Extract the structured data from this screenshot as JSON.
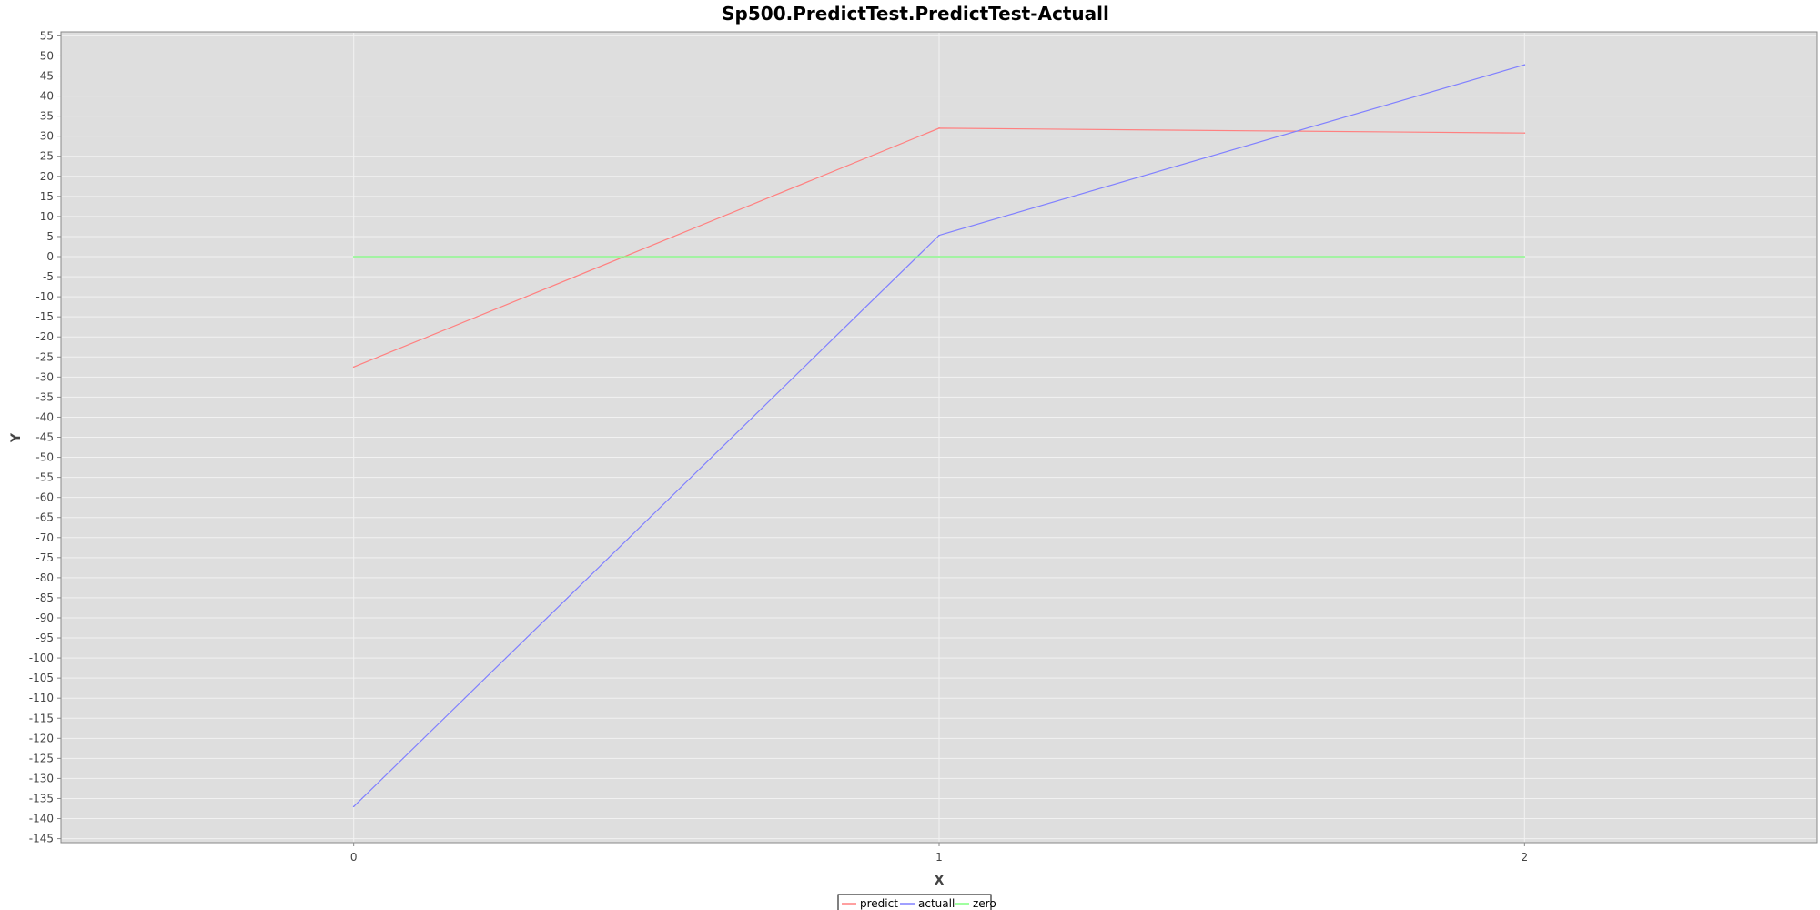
{
  "chart_data": {
    "type": "line",
    "title": "Sp500.PredictTest.PredictTest-Actuall",
    "xlabel": "X",
    "ylabel": "Y",
    "x": [
      0,
      1,
      2
    ],
    "x_ticks": [
      "0",
      "1",
      "2"
    ],
    "xlim": [
      -0.5,
      2.5
    ],
    "ylim": [
      -146,
      56
    ],
    "y_tick_step": 5,
    "y_tick_min": -145,
    "y_tick_max": 55,
    "grid": true,
    "legend_position": "bottom-center",
    "series": [
      {
        "name": "predict",
        "color": "#ff8080",
        "values": [
          -27.5,
          32.0,
          30.8
        ]
      },
      {
        "name": "actuall",
        "color": "#8080ff",
        "values": [
          -137.0,
          5.3,
          47.8
        ]
      },
      {
        "name": "zero",
        "color": "#80ff80",
        "values": [
          0,
          0,
          0
        ]
      }
    ],
    "colors": {
      "plot_background": "#dedede",
      "gridline": "#f2f2f2",
      "axis": "#888888"
    }
  }
}
